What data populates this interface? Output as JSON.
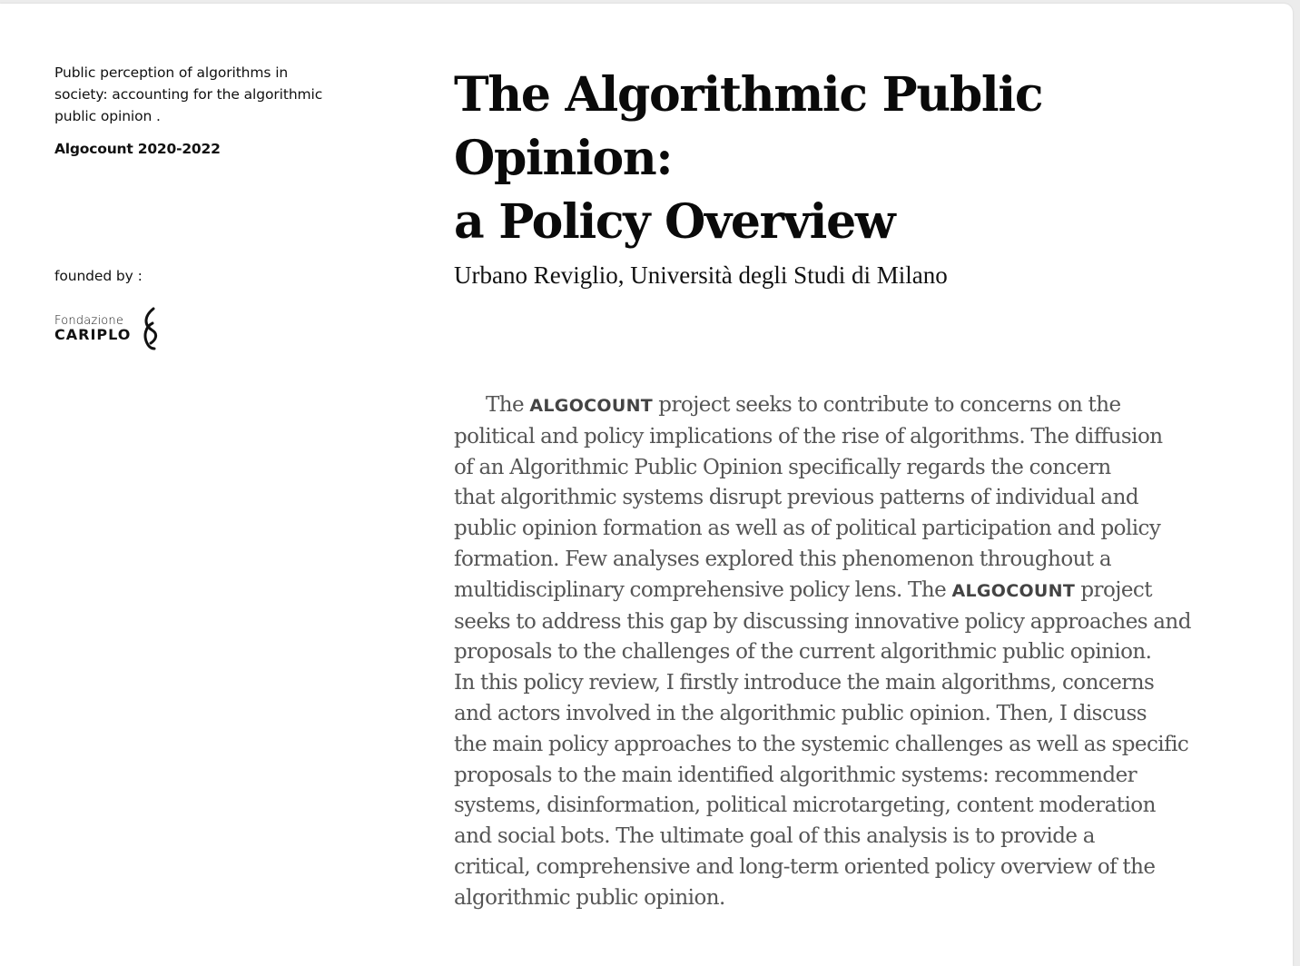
{
  "sidebar": {
    "project_desc_lines": [
      "Public perception of algorithms in",
      "society: accounting for the algorithmic",
      "public opinion ."
    ],
    "project_years": "Algocount 2020-2022",
    "founded_label": "founded by :",
    "logo_top": "Fondazione",
    "logo_bottom": "CARIPLO"
  },
  "main": {
    "title_lines": [
      "The Algorithmic Public Opinion:",
      "a Policy Overview"
    ],
    "author": "Urbano Reviglio, Università degli Studi di Milano",
    "brand": "ALGOCOUNT",
    "abstract": {
      "l1_a": "The ",
      "l1_b": " project seeks to contribute to concerns on the",
      "l2": "political and policy implications of the rise of algorithms. The diffusion",
      "l3": "of an Algorithmic Public Opinion specifically regards the concern",
      "l4": "that algorithmic systems disrupt previous patterns of individual and",
      "l5": "public opinion formation as well as of political participation and policy",
      "l6": "formation. Few analyses explored this phenomenon throughout a",
      "l7_a": "multidisciplinary comprehensive policy lens. The ",
      "l7_b": " project",
      "l8": "seeks to address this gap by discussing innovative policy approaches and",
      "l9": "proposals to the challenges of the current algorithmic public opinion.",
      "l10": "In this policy review, I firstly introduce the main algorithms, concerns",
      "l11": "and actors involved in the algorithmic public opinion. Then, I discuss",
      "l12": "the main policy approaches to the systemic challenges as well as specific",
      "l13": "proposals to the main identified algorithmic systems: recommender",
      "l14": "systems, disinformation, political microtargeting, content moderation",
      "l15": "and social bots. The ultimate goal of this analysis is to provide a",
      "l16": "critical, comprehensive and long-term oriented policy overview of the",
      "l17": "algorithmic public opinion."
    }
  }
}
